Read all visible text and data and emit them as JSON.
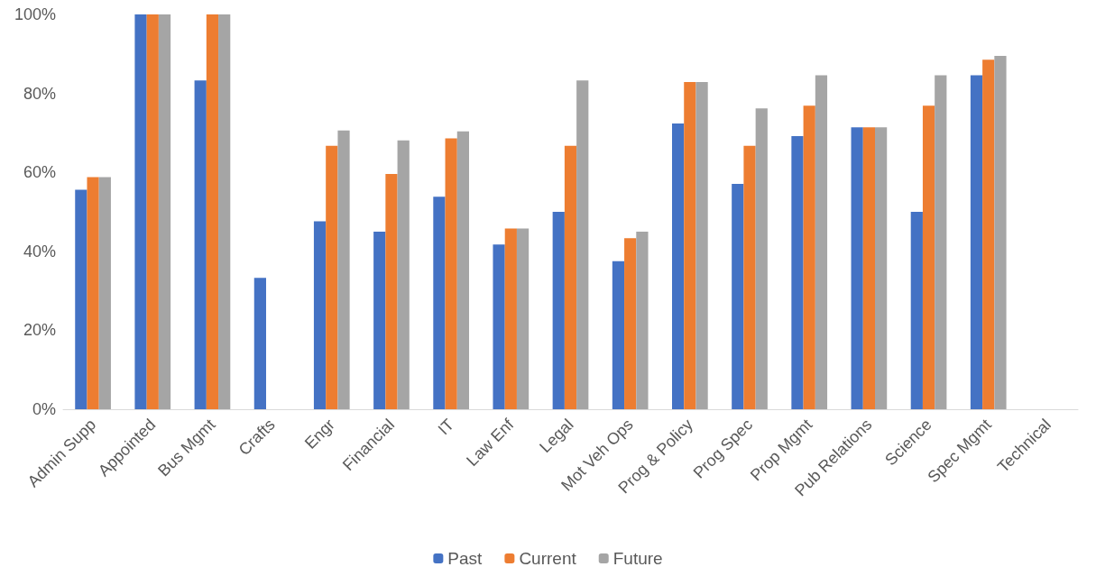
{
  "chart_data": {
    "type": "bar",
    "categories": [
      "Admin Supp",
      "Appointed",
      "Bus Mgmt",
      "Crafts",
      "Engr",
      "Financial",
      "IT",
      "Law Enf",
      "Legal",
      "Mot Veh Ops",
      "Prog & Policy",
      "Prog Spec",
      "Prop Mgmt",
      "Pub Relations",
      "Science",
      "Spec Mgmt",
      "Technical"
    ],
    "series": [
      {
        "name": "Past",
        "color": "#4472c4",
        "values": [
          55.6,
          100,
          83.3,
          33.3,
          47.6,
          45,
          53.8,
          41.7,
          50,
          37.5,
          72.4,
          57.1,
          69.2,
          71.4,
          50,
          84.6,
          0
        ]
      },
      {
        "name": "Current",
        "color": "#ed7d31",
        "values": [
          58.8,
          100,
          100,
          0,
          66.7,
          59.6,
          68.6,
          45.8,
          66.7,
          43.3,
          82.9,
          66.7,
          76.9,
          71.4,
          76.9,
          88.5,
          0
        ]
      },
      {
        "name": "Future",
        "color": "#a5a5a5",
        "values": [
          58.8,
          100,
          100,
          0,
          70.6,
          68.1,
          70.4,
          45.8,
          83.3,
          45,
          82.9,
          76.2,
          84.6,
          71.4,
          84.6,
          89.5,
          0
        ]
      }
    ],
    "ylim": [
      0,
      100
    ],
    "yticks": [
      {
        "value": 0,
        "label": "0%"
      },
      {
        "value": 20,
        "label": "20%"
      },
      {
        "value": 40,
        "label": "40%"
      },
      {
        "value": 60,
        "label": "60%"
      },
      {
        "value": 80,
        "label": "80%"
      },
      {
        "value": 100,
        "label": "100%"
      }
    ],
    "legend": "bottom"
  }
}
